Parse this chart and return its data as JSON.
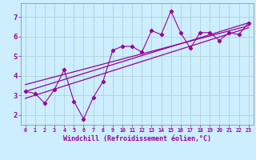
{
  "title": "",
  "xlabel": "Windchill (Refroidissement éolien,°C)",
  "ylabel": "",
  "bg_color": "#cceeff",
  "line_color": "#990099",
  "grid_color": "#aacccc",
  "xlim": [
    -0.5,
    23.5
  ],
  "ylim": [
    1.5,
    7.7
  ],
  "yticks": [
    2,
    3,
    4,
    5,
    6,
    7
  ],
  "xticks": [
    0,
    1,
    2,
    3,
    4,
    5,
    6,
    7,
    8,
    9,
    10,
    11,
    12,
    13,
    14,
    15,
    16,
    17,
    18,
    19,
    20,
    21,
    22,
    23
  ],
  "xtick_labels": [
    "0",
    "1",
    "2",
    "3",
    "4",
    "5",
    "6",
    "7",
    "8",
    "9",
    "10",
    "11",
    "12",
    "13",
    "14",
    "15",
    "16",
    "17",
    "18",
    "19",
    "20",
    "21",
    "22",
    "23"
  ],
  "data_x": [
    0,
    1,
    2,
    3,
    4,
    5,
    6,
    7,
    8,
    9,
    10,
    11,
    12,
    13,
    14,
    15,
    16,
    17,
    18,
    19,
    20,
    21,
    22,
    23
  ],
  "data_y": [
    3.2,
    3.1,
    2.6,
    3.3,
    4.3,
    2.7,
    1.8,
    2.9,
    3.7,
    5.3,
    5.5,
    5.5,
    5.2,
    6.3,
    6.1,
    7.3,
    6.2,
    5.4,
    6.2,
    6.2,
    5.8,
    6.2,
    6.1,
    6.7
  ],
  "reg_line1": [
    [
      0,
      3.2
    ],
    [
      23,
      6.7
    ]
  ],
  "reg_line2": [
    [
      0,
      3.55
    ],
    [
      23,
      6.55
    ]
  ],
  "reg_line3": [
    [
      0,
      2.85
    ],
    [
      23,
      6.45
    ]
  ]
}
